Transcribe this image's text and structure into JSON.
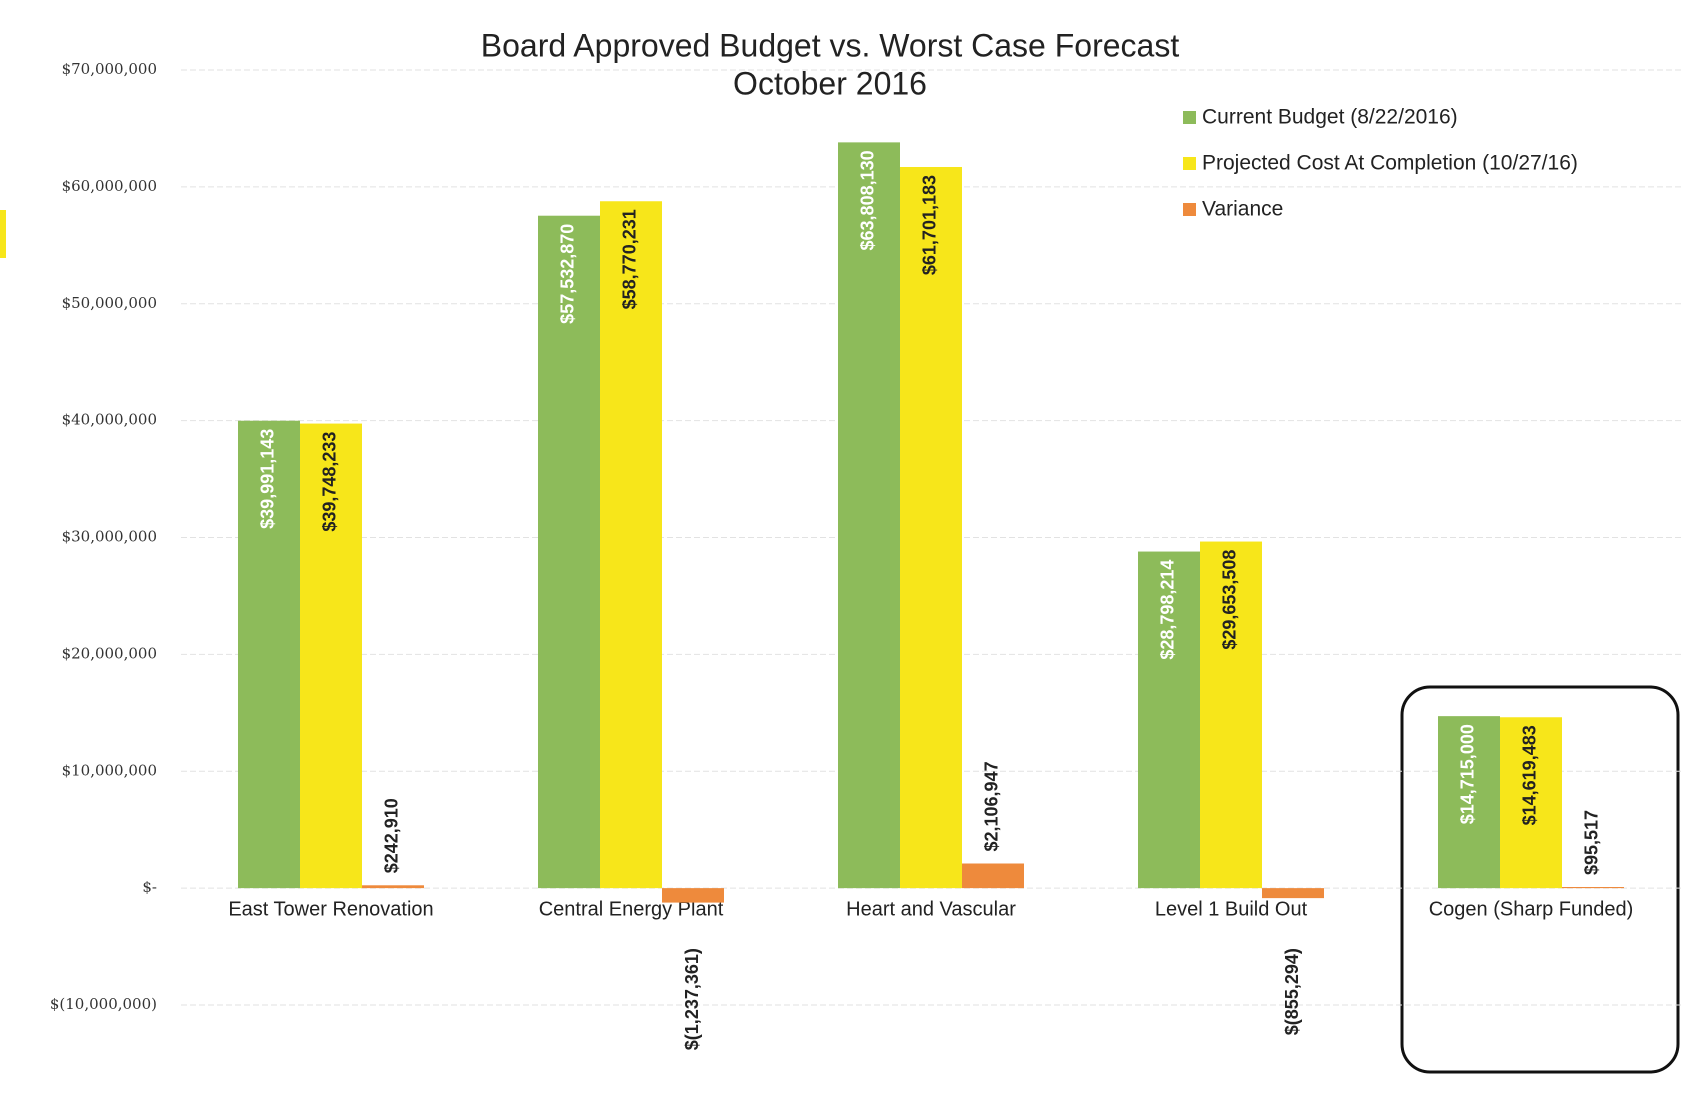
{
  "chart_data": {
    "type": "bar",
    "title": "Board Approved Budget vs. Worst Case Forecast",
    "subtitle": "October 2016",
    "categories": [
      "East Tower Renovation",
      "Central Energy Plant",
      "Heart and Vascular",
      "Level 1 Build Out",
      "Cogen (Sharp Funded)"
    ],
    "series": [
      {
        "name": "Current Budget (8/22/2016)",
        "color": "#8dbb5a",
        "values": [
          39991143,
          57532870,
          63808130,
          28798214,
          14715000
        ],
        "value_labels": [
          "$39,991,143",
          "$57,532,870",
          "$63,808,130",
          "$28,798,214",
          "$14,715,000"
        ]
      },
      {
        "name": "Projected Cost At Completion (10/27/16)",
        "color": "#f7e61a",
        "values": [
          39748233,
          58770231,
          61701183,
          29653508,
          14619483
        ],
        "value_labels": [
          "$39,748,233",
          "$58,770,231",
          "$61,701,183",
          "$29,653,508",
          "$14,619,483"
        ]
      },
      {
        "name": "Variance",
        "color": "#ee8a3c",
        "values": [
          242910,
          -1237361,
          2106947,
          -855294,
          95517
        ],
        "value_labels": [
          "$242,910",
          "$(1,237,361)",
          "$2,106,947",
          "$(855,294)",
          "$95,517"
        ]
      }
    ],
    "ylim": [
      -10000000,
      70000000
    ],
    "yticks": [
      {
        "value": -10000000,
        "label": "$(10,000,000)"
      },
      {
        "value": 0,
        "label": "$-"
      },
      {
        "value": 10000000,
        "label": "$10,000,000"
      },
      {
        "value": 20000000,
        "label": "$20,000,000"
      },
      {
        "value": 30000000,
        "label": "$30,000,000"
      },
      {
        "value": 40000000,
        "label": "$40,000,000"
      },
      {
        "value": 50000000,
        "label": "$50,000,000"
      },
      {
        "value": 60000000,
        "label": "$60,000,000"
      },
      {
        "value": 70000000,
        "label": "$70,000,000"
      }
    ],
    "grid": true,
    "legend": "top-right"
  }
}
